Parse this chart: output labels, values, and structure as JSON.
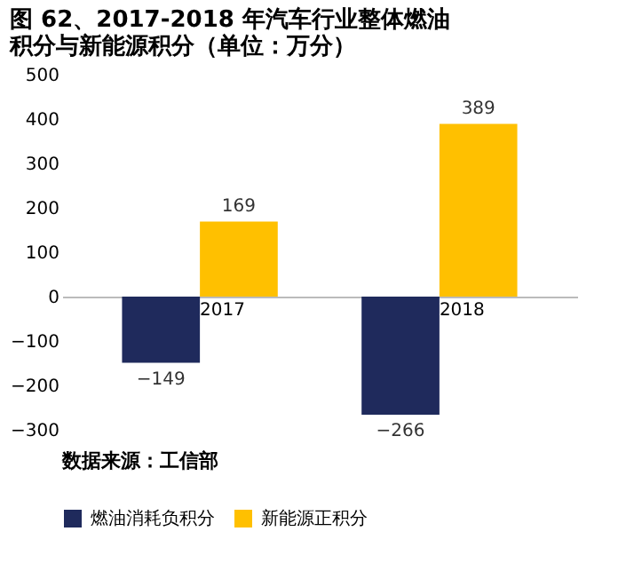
{
  "chart_data": {
    "type": "bar",
    "title": "图 62、2017-2018 年汽车行业整体燃油积分与新能源积分（单位：万分）",
    "categories": [
      "2017",
      "2018"
    ],
    "series": [
      {
        "name": "燃油消耗负积分",
        "color": "#1f2a5c",
        "values": [
          -149,
          -266
        ]
      },
      {
        "name": "新能源正积分",
        "color": "#ffc000",
        "values": [
          169,
          389
        ]
      }
    ],
    "ylim": [
      -300,
      500
    ],
    "yticks": [
      -300,
      -200,
      -100,
      0,
      100,
      200,
      300,
      400,
      500
    ],
    "grid": false,
    "legend": "bottom",
    "data_labels": true,
    "annotations": [
      "数据来源：工信部"
    ]
  }
}
